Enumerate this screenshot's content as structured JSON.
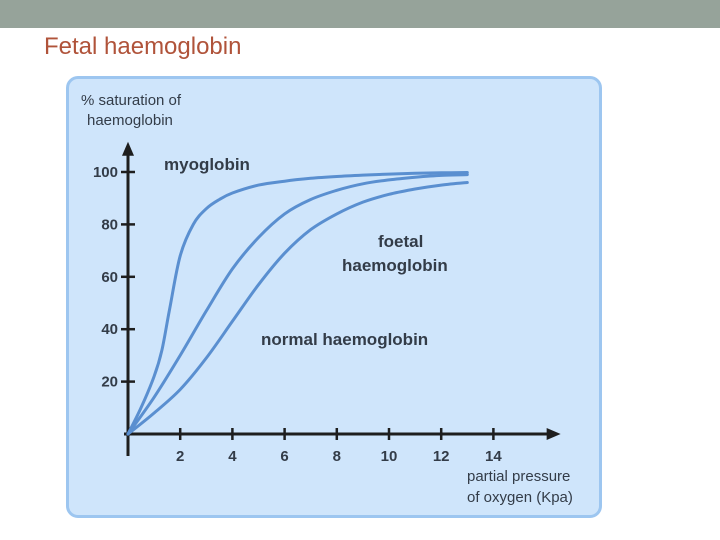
{
  "slide": {
    "title": "Fetal haemoglobin"
  },
  "colors": {
    "header_bar": "#96a39a",
    "title": "#b0533a",
    "panel_bg": "#cfe5fb",
    "panel_border": "#9dc6f0",
    "curve": "#5a8fd0",
    "axis": "#1e1e1e",
    "text": "#333c48"
  },
  "chart_data": {
    "type": "line",
    "ylabel_lines": [
      "% saturation of",
      "haemoglobin"
    ],
    "xlabel_lines": [
      "partial pressure",
      "of oxygen (Kpa)"
    ],
    "xlim": [
      0,
      16.5
    ],
    "ylim": [
      0,
      110
    ],
    "x_ticks": [
      2,
      4,
      6,
      8,
      10,
      12,
      14
    ],
    "y_ticks": [
      20,
      40,
      60,
      80,
      100
    ],
    "grid": false,
    "series": [
      {
        "name": "myoglobin",
        "label_lines": [
          "myoglobin"
        ],
        "x": [
          0,
          0.5,
          1,
          1.3,
          1.6,
          2,
          2.5,
          3,
          3.5,
          4,
          5,
          6,
          7,
          8,
          9,
          10,
          11,
          12,
          13
        ],
        "y": [
          0,
          10,
          22,
          32,
          48,
          68,
          80,
          86,
          89.5,
          92,
          95,
          96.5,
          97.6,
          98.3,
          98.8,
          99.2,
          99.5,
          99.7,
          99.8
        ]
      },
      {
        "name": "foetal haemoglobin",
        "label_lines": [
          "foetal",
          "haemoglobin"
        ],
        "x": [
          0,
          1,
          2,
          3,
          4,
          5,
          6,
          7,
          8,
          9,
          10,
          11,
          12,
          13
        ],
        "y": [
          0,
          14,
          30,
          47,
          63,
          75,
          84,
          89.5,
          93,
          95.5,
          97,
          98,
          98.7,
          99
        ]
      },
      {
        "name": "normal haemoglobin",
        "label_lines": [
          "normal haemoglobin"
        ],
        "x": [
          0,
          1,
          2,
          3,
          4,
          5,
          6,
          7,
          8,
          9,
          10,
          11,
          12,
          13
        ],
        "y": [
          0,
          8,
          17,
          29,
          43,
          57,
          69,
          78,
          84,
          88.5,
          91.5,
          93.5,
          95,
          96
        ]
      }
    ]
  }
}
